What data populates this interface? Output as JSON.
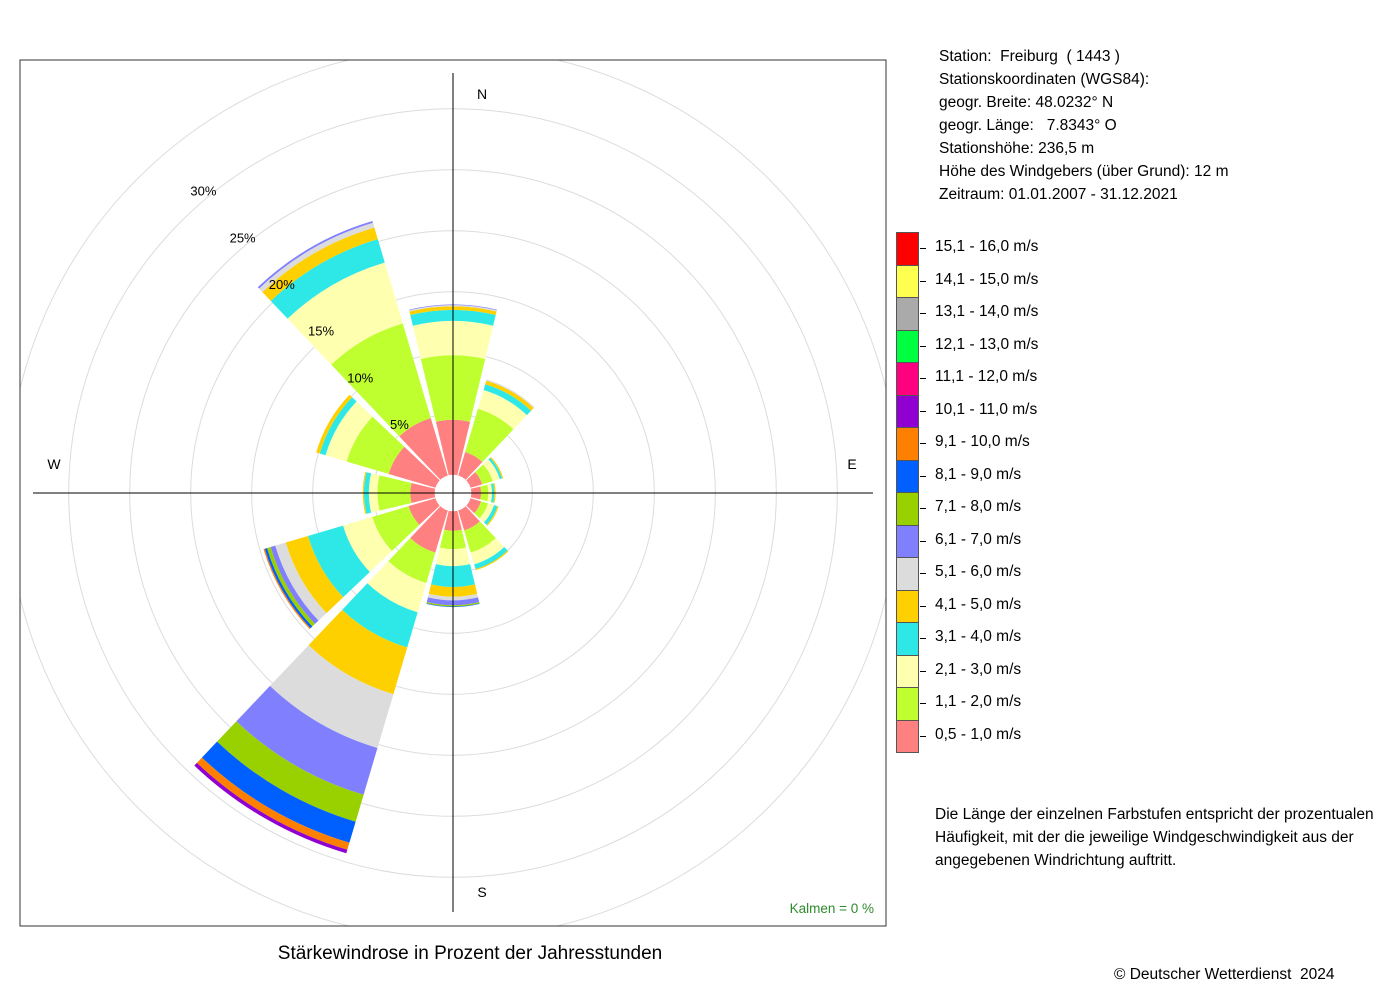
{
  "station": {
    "line1": "Station:  Freiburg  ( 1443 )",
    "line2": "Stationskoordinaten (WGS84):",
    "line3": "geogr. Breite: 48.0232° N",
    "line4": "geogr. Länge:   7.8343° O",
    "line5": "Stationshöhe: 236,5 m",
    "line6": "Höhe des Windgebers (über Grund): 12 m",
    "line7": "Zeitraum: 01.01.2007 - 31.12.2021"
  },
  "note": "Die Länge der einzelnen Farbstufen entspricht der prozentualen Häufigkeit, mit der die jeweilige Windgeschwindigkeit aus der angegebenen Windrichtung auftritt.",
  "caption": "Stärkewindrose in Prozent der Jahresstunden",
  "copyright": "© Deutscher Wetterdienst  2024",
  "calm_label": "Kalmen  =  0 %",
  "chart_data": {
    "type": "wind-rose",
    "title": "Stärkewindrose in Prozent der Jahresstunden",
    "radial_unit": "%",
    "radial_ticks": [
      "5%",
      "10%",
      "15%",
      "20%",
      "25%",
      "30%"
    ],
    "radial_tick_values": [
      5,
      10,
      15,
      20,
      25,
      30
    ],
    "grid_rings": [
      5,
      10,
      15,
      20,
      25,
      30,
      35
    ],
    "radial_max": 35,
    "center_offset": 1.5,
    "compass_labels": [
      "N",
      "E",
      "S",
      "W"
    ],
    "calm_percent": 0,
    "speed_classes": [
      {
        "label": "0,5 - 1,0 m/s",
        "color": "#FF8080"
      },
      {
        "label": "1,1 - 2,0 m/s",
        "color": "#BFFF30"
      },
      {
        "label": "2,1 - 3,0 m/s",
        "color": "#FFFFB0"
      },
      {
        "label": "3,1 - 4,0 m/s",
        "color": "#2EE8E8"
      },
      {
        "label": "4,1 - 5,0 m/s",
        "color": "#FFD000"
      },
      {
        "label": "5,1 - 6,0 m/s",
        "color": "#DCDCDC"
      },
      {
        "label": "6,1 - 7,0 m/s",
        "color": "#8080FF"
      },
      {
        "label": "7,1 - 8,0 m/s",
        "color": "#99D000"
      },
      {
        "label": "8,1 - 9,0 m/s",
        "color": "#0060FF"
      },
      {
        "label": "9,1 - 10,0 m/s",
        "color": "#FF8000"
      },
      {
        "label": "10,1 - 11,0 m/s",
        "color": "#9000D0"
      },
      {
        "label": "11,1 - 12,0 m/s",
        "color": "#FF0080"
      },
      {
        "label": "12,1 - 13,0 m/s",
        "color": "#00FF40"
      },
      {
        "label": "13,1 - 14,0 m/s",
        "color": "#AAAAAA"
      },
      {
        "label": "14,1 - 15,0 m/s",
        "color": "#FFFF50"
      },
      {
        "label": "15,1 - 16,0 m/s",
        "color": "#FF0000"
      }
    ],
    "sectors": [
      {
        "direction_deg": 0,
        "values": [
          4.5,
          5.3,
          2.8,
          0.9,
          0.3,
          0.1,
          0.05
        ]
      },
      {
        "direction_deg": 30,
        "values": [
          2.0,
          3.7,
          1.6,
          0.5,
          0.3,
          0.1
        ]
      },
      {
        "direction_deg": 60,
        "values": [
          1.0,
          0.9,
          0.6,
          0.2,
          0.1
        ]
      },
      {
        "direction_deg": 90,
        "values": [
          0.8,
          0.6,
          0.3,
          0.2,
          0.1
        ]
      },
      {
        "direction_deg": 120,
        "values": [
          0.9,
          0.6,
          0.5,
          0.3,
          0.1
        ]
      },
      {
        "direction_deg": 150,
        "values": [
          1.7,
          1.9,
          1.0,
          0.4,
          0.1
        ]
      },
      {
        "direction_deg": 180,
        "values": [
          1.6,
          1.5,
          1.4,
          1.7,
          0.8,
          0.3,
          0.4,
          0.1,
          0.05
        ]
      },
      {
        "direction_deg": 210,
        "values": [
          3.6,
          2.6,
          2.5,
          3.0,
          4.0,
          4.6,
          4.0,
          2.3,
          1.8,
          0.6,
          0.3
        ]
      },
      {
        "direction_deg": 240,
        "values": [
          2.3,
          3.1,
          2.5,
          3.0,
          1.9,
          0.9,
          0.4,
          0.3,
          0.2,
          0.1
        ]
      },
      {
        "direction_deg": 270,
        "values": [
          2.0,
          2.7,
          0.7,
          0.4,
          0.1
        ]
      },
      {
        "direction_deg": 300,
        "values": [
          4.0,
          3.6,
          1.8,
          0.5,
          0.3
        ]
      },
      {
        "direction_deg": 330,
        "values": [
          4.9,
          8.1,
          5.2,
          2.0,
          1.0,
          0.4,
          0.15
        ]
      }
    ]
  }
}
